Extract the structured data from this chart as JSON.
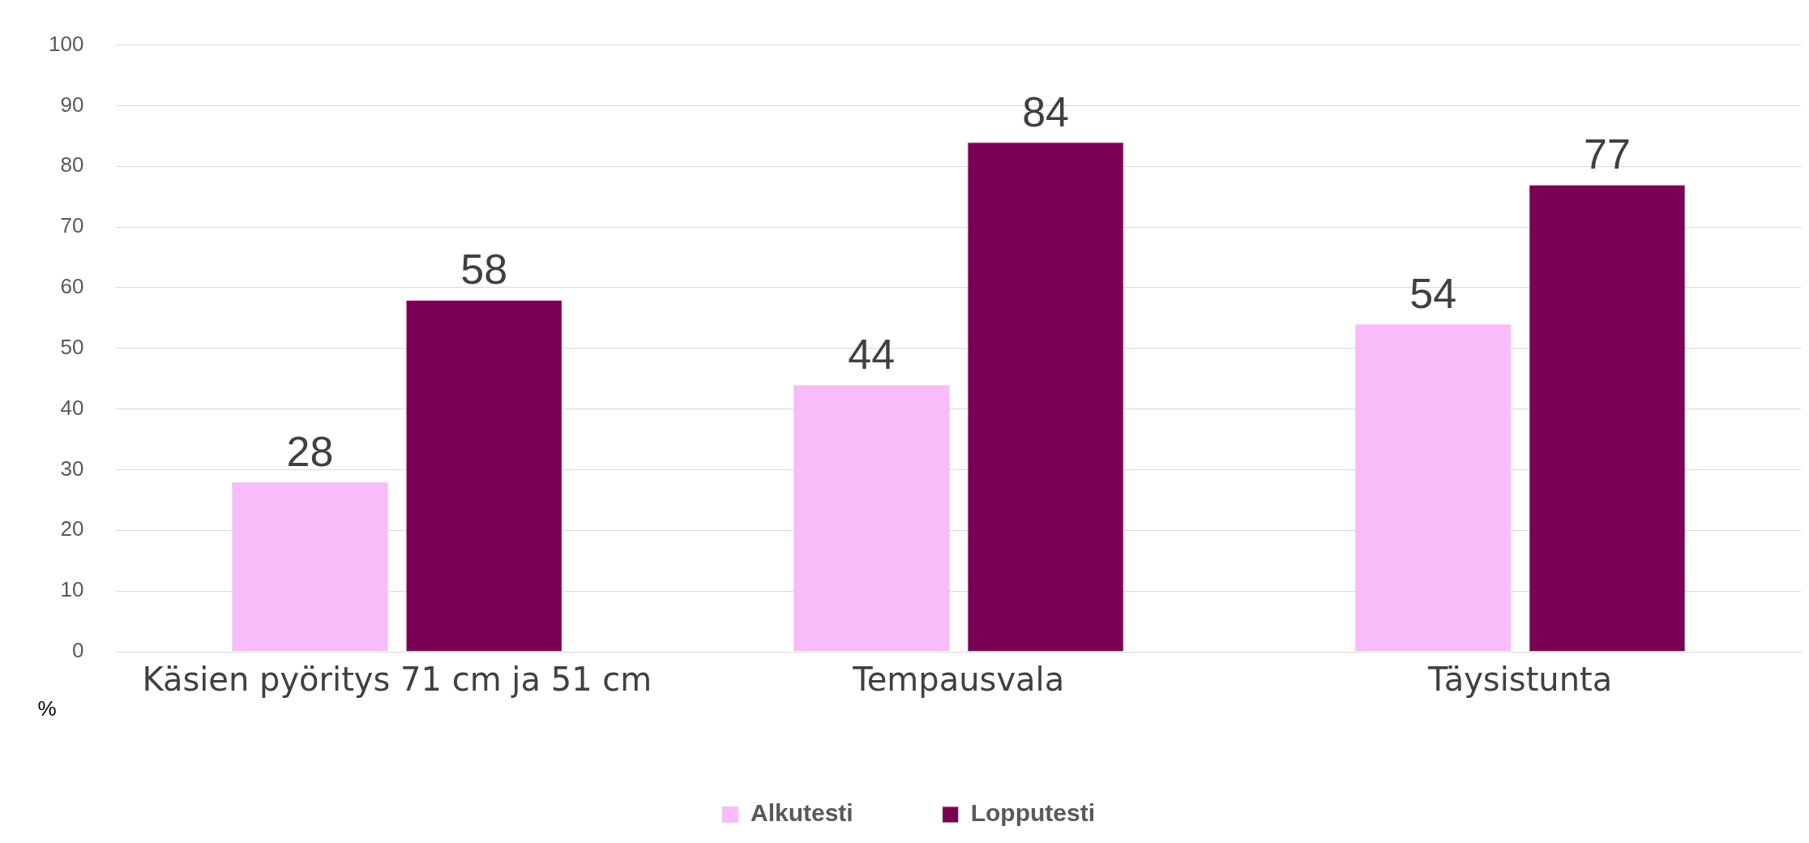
{
  "chart_data": {
    "type": "bar",
    "ylabel": "%",
    "categories": [
      "Käsien pyöritys 71 cm ja 51 cm",
      "Tempausvala",
      "Täysistunta"
    ],
    "series": [
      {
        "name": "Alkutesti",
        "color": "#f9bbf9",
        "values": [
          28,
          44,
          54
        ]
      },
      {
        "name": "Lopputesti",
        "color": "#7a0055",
        "values": [
          58,
          84,
          77
        ]
      }
    ],
    "ylim": [
      0,
      100
    ],
    "yticks": [
      0,
      10,
      20,
      30,
      40,
      50,
      60,
      70,
      80,
      90,
      100
    ],
    "grid": "y",
    "legend": "bottom",
    "data_labels": true
  }
}
